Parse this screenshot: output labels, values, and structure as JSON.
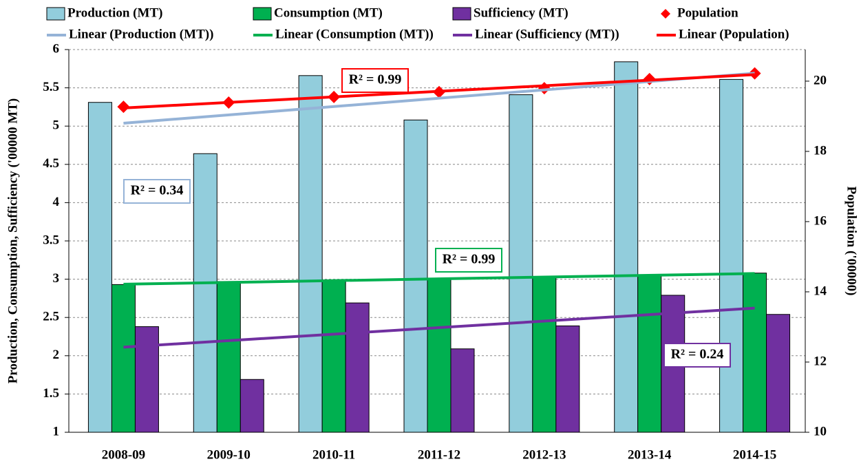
{
  "chart_data": {
    "type": "bar",
    "categories": [
      "2008-09",
      "2009-10",
      "2010-11",
      "2011-12",
      "2012-13",
      "2013-14",
      "2014-15"
    ],
    "y_label": "Production, Consumption, Sufficiency ('00000 MT)",
    "y2_label": "Population ('00000)",
    "ylim": [
      1,
      6
    ],
    "yticks": [
      1,
      1.5,
      2,
      2.5,
      3,
      3.5,
      4,
      4.5,
      5,
      5.5,
      6
    ],
    "y2lim": [
      10,
      20.9
    ],
    "y2ticks": [
      10,
      12,
      14,
      16,
      18,
      20
    ],
    "grid": true,
    "series": [
      {
        "name": "Production (MT)",
        "type": "bar",
        "color": "#92cddc",
        "values": [
          5.31,
          4.64,
          5.66,
          5.08,
          5.41,
          5.84,
          5.61
        ],
        "trendline": {
          "name": "Linear (Production (MT))",
          "color": "#95b3d7",
          "label": "R² = 0.34"
        }
      },
      {
        "name": "Consumption (MT)",
        "type": "bar",
        "color": "#00b050",
        "values": [
          2.93,
          2.97,
          2.98,
          3.0,
          3.02,
          3.05,
          3.08
        ],
        "trendline": {
          "name": "Linear (Consumption (MT))",
          "color": "#00b050",
          "label": "R² = 0.99"
        }
      },
      {
        "name": "Sufficiency (MT)",
        "type": "bar",
        "color": "#7030a0",
        "values": [
          2.38,
          1.69,
          2.69,
          2.09,
          2.39,
          2.79,
          2.54
        ],
        "trendline": {
          "name": "Linear (Sufficiency (MT))",
          "color": "#7030a0",
          "label": "R² = 0.24"
        }
      },
      {
        "name": "Population",
        "type": "scatter",
        "axis": "y2",
        "color": "#ff0000",
        "values": [
          19.27,
          19.39,
          19.55,
          19.69,
          19.8,
          20.06,
          20.22
        ],
        "trendline": {
          "name": "Linear (Population)",
          "color": "#ff0000",
          "label": "R² = 0.99"
        }
      }
    ]
  }
}
